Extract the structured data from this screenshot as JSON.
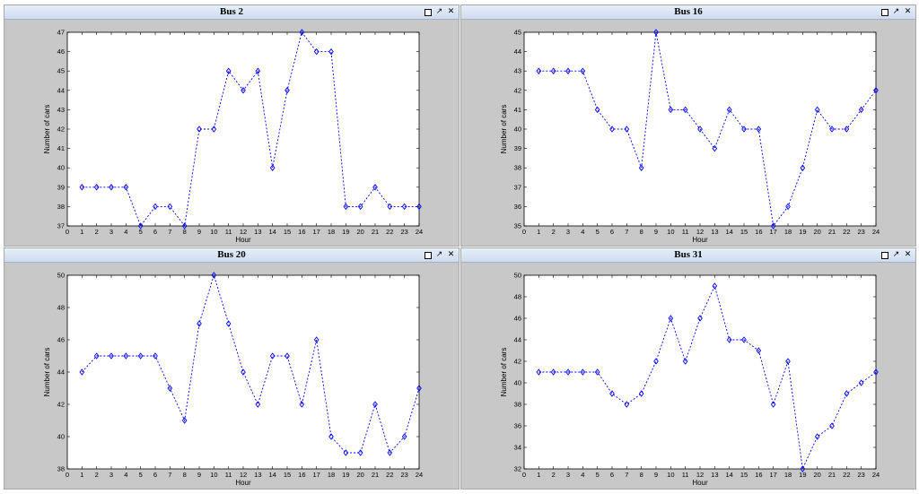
{
  "windows": [
    {
      "title": "Bus 2",
      "controls": [
        "restore",
        "undock",
        "close"
      ]
    },
    {
      "title": "Bus 16",
      "controls": [
        "restore",
        "undock",
        "close"
      ]
    },
    {
      "title": "Bus 20",
      "controls": [
        "restore",
        "undock",
        "close"
      ]
    },
    {
      "title": "Bus 31",
      "controls": [
        "restore",
        "undock",
        "close"
      ]
    }
  ],
  "colors": {
    "line": "#0000ff",
    "background": "#c8c8c8",
    "axes": "#ffffff"
  },
  "chart_data": [
    {
      "type": "line",
      "title": "Bus 2",
      "xlabel": "Hour",
      "ylabel": "Number of cars",
      "x": [
        1,
        2,
        3,
        4,
        5,
        6,
        7,
        8,
        9,
        10,
        11,
        12,
        13,
        14,
        15,
        16,
        17,
        18,
        19,
        20,
        21,
        22,
        23,
        24
      ],
      "series": [
        {
          "values": [
            39,
            39,
            39,
            39,
            37,
            38,
            38,
            37,
            42,
            42,
            45,
            44,
            45,
            40,
            44,
            47,
            46,
            46,
            38,
            38,
            39,
            38,
            38,
            38
          ]
        }
      ],
      "xlim": [
        0,
        24
      ],
      "ylim": [
        37,
        47
      ],
      "xticks": [
        0,
        1,
        2,
        3,
        4,
        5,
        6,
        7,
        8,
        9,
        10,
        11,
        12,
        13,
        14,
        15,
        16,
        17,
        18,
        19,
        20,
        21,
        22,
        23,
        24
      ],
      "yticks": [
        37,
        38,
        39,
        40,
        41,
        42,
        43,
        44,
        45,
        46,
        47
      ],
      "marker": "diamond",
      "linestyle": "dotted",
      "grid": false
    },
    {
      "type": "line",
      "title": "Bus 16",
      "xlabel": "Hour",
      "ylabel": "Number of cars",
      "x": [
        1,
        2,
        3,
        4,
        5,
        6,
        7,
        8,
        9,
        10,
        11,
        12,
        13,
        14,
        15,
        16,
        17,
        18,
        19,
        20,
        21,
        22,
        23,
        24
      ],
      "series": [
        {
          "values": [
            43,
            43,
            43,
            43,
            41,
            40,
            40,
            38,
            45,
            41,
            41,
            40,
            39,
            41,
            40,
            40,
            35,
            36,
            38,
            41,
            40,
            40,
            41,
            42
          ]
        }
      ],
      "xlim": [
        0,
        24
      ],
      "ylim": [
        35,
        45
      ],
      "xticks": [
        0,
        1,
        2,
        3,
        4,
        5,
        6,
        7,
        8,
        9,
        10,
        11,
        12,
        13,
        14,
        15,
        16,
        17,
        18,
        19,
        20,
        21,
        22,
        23,
        24
      ],
      "yticks": [
        35,
        36,
        37,
        38,
        39,
        40,
        41,
        42,
        43,
        44,
        45
      ],
      "marker": "diamond",
      "linestyle": "dotted",
      "grid": false
    },
    {
      "type": "line",
      "title": "Bus 20",
      "xlabel": "Hour",
      "ylabel": "Number of cars",
      "x": [
        1,
        2,
        3,
        4,
        5,
        6,
        7,
        8,
        9,
        10,
        11,
        12,
        13,
        14,
        15,
        16,
        17,
        18,
        19,
        20,
        21,
        22,
        23,
        24
      ],
      "series": [
        {
          "values": [
            44,
            45,
            45,
            45,
            45,
            45,
            43,
            41,
            47,
            50,
            47,
            44,
            42,
            45,
            45,
            42,
            46,
            40,
            39,
            39,
            42,
            39,
            40,
            43
          ]
        }
      ],
      "xlim": [
        0,
        24
      ],
      "ylim": [
        38,
        50
      ],
      "xticks": [
        0,
        1,
        2,
        3,
        4,
        5,
        6,
        7,
        8,
        9,
        10,
        11,
        12,
        13,
        14,
        15,
        16,
        17,
        18,
        19,
        20,
        21,
        22,
        23,
        24
      ],
      "yticks": [
        38,
        40,
        42,
        44,
        46,
        48,
        50
      ],
      "marker": "diamond",
      "linestyle": "dotted",
      "grid": false
    },
    {
      "type": "line",
      "title": "Bus 31",
      "xlabel": "Hour",
      "ylabel": "Number of cars",
      "x": [
        1,
        2,
        3,
        4,
        5,
        6,
        7,
        8,
        9,
        10,
        11,
        12,
        13,
        14,
        15,
        16,
        17,
        18,
        19,
        20,
        21,
        22,
        23,
        24
      ],
      "series": [
        {
          "values": [
            41,
            41,
            41,
            41,
            41,
            39,
            38,
            39,
            42,
            46,
            42,
            46,
            49,
            44,
            44,
            43,
            38,
            42,
            32,
            35,
            36,
            39,
            40,
            41
          ]
        }
      ],
      "xlim": [
        0,
        24
      ],
      "ylim": [
        32,
        50
      ],
      "xticks": [
        0,
        1,
        2,
        3,
        4,
        5,
        6,
        7,
        8,
        9,
        10,
        11,
        12,
        13,
        14,
        15,
        16,
        17,
        18,
        19,
        20,
        21,
        22,
        23,
        24
      ],
      "yticks": [
        32,
        34,
        36,
        38,
        40,
        42,
        44,
        46,
        48,
        50
      ],
      "marker": "diamond",
      "linestyle": "dotted",
      "grid": false
    }
  ]
}
